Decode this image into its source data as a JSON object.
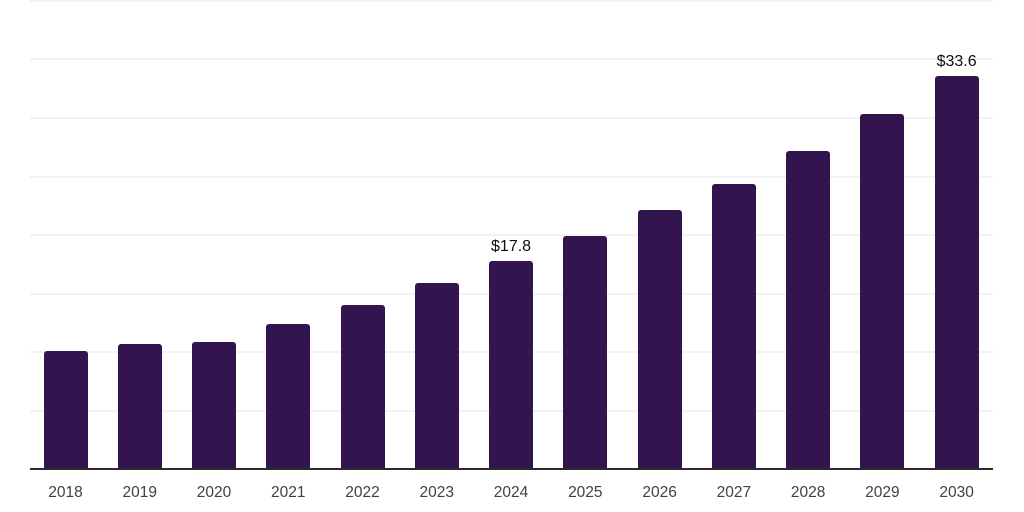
{
  "chart_data": {
    "type": "bar",
    "title": "",
    "xlabel": "",
    "ylabel": "",
    "categories": [
      "2018",
      "2019",
      "2020",
      "2021",
      "2022",
      "2023",
      "2024",
      "2025",
      "2026",
      "2027",
      "2028",
      "2029",
      "2030"
    ],
    "values": [
      10.1,
      10.7,
      10.9,
      12.4,
      14.0,
      15.9,
      17.8,
      19.9,
      22.1,
      24.4,
      27.2,
      30.3,
      33.6
    ],
    "data_labels": [
      null,
      null,
      null,
      null,
      null,
      null,
      "$17.8",
      null,
      null,
      null,
      null,
      null,
      "$33.6"
    ],
    "ylim": [
      0,
      40.2
    ],
    "gridline_values": [
      5,
      10,
      15,
      20,
      25,
      30,
      35,
      40
    ],
    "grid": "horizontal",
    "legend": "none",
    "colors": {
      "bar": "#32154F",
      "gridline": "#f2f2f4",
      "axis_line": "#2b2b2b",
      "x_tick_label": "#404040",
      "data_label": "#0d0d0d",
      "background": "#ffffff"
    }
  }
}
